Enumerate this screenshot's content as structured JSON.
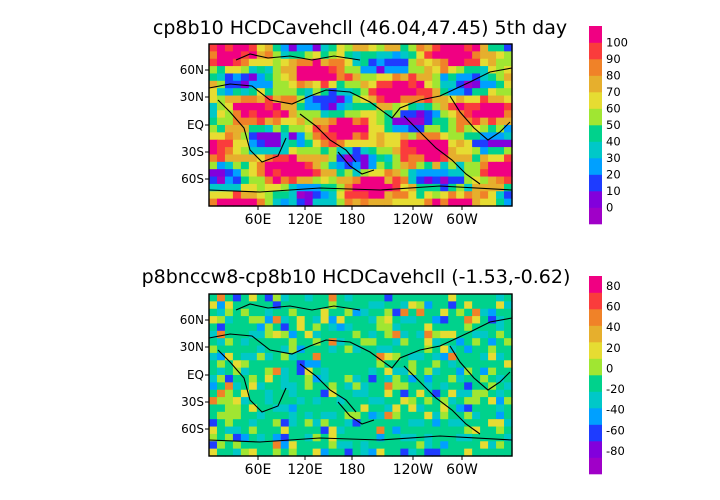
{
  "panels": [
    {
      "title": "cp8b10 HCDCavehcll (46.04,47.45) 5th day",
      "lat_labels": [
        "60N",
        "30N",
        "EQ",
        "30S",
        "60S"
      ],
      "lon_labels": [
        "60E",
        "120E",
        "180",
        "120W",
        "60W"
      ],
      "colorbar": {
        "colors": [
          "#a000c8",
          "#8200dc",
          "#1e3cff",
          "#00a0ff",
          "#00c8c8",
          "#00d28c",
          "#a0e632",
          "#e6dc32",
          "#e6af2d",
          "#f08228",
          "#fa3c3c",
          "#f00082"
        ],
        "labels": [
          "0",
          "10",
          "20",
          "30",
          "40",
          "50",
          "60",
          "70",
          "80",
          "90",
          "100"
        ]
      },
      "field_palette": [
        "#a000c8",
        "#8200dc",
        "#1e3cff",
        "#00a0ff",
        "#00c8c8",
        "#00d28c",
        "#a0e632",
        "#e6dc32",
        "#e6af2d",
        "#f08228",
        "#fa3c3c",
        "#f00082"
      ]
    },
    {
      "title": "p8bnccw8-cp8b10 HCDCavehcll (-1.53,-0.62)",
      "lat_labels": [
        "60N",
        "30N",
        "EQ",
        "30S",
        "60S"
      ],
      "lon_labels": [
        "60E",
        "120E",
        "180",
        "120W",
        "60W"
      ],
      "colorbar": {
        "colors": [
          "#a000c8",
          "#8200dc",
          "#1e3cff",
          "#00a0ff",
          "#00c8c8",
          "#00d28c",
          "#a0e632",
          "#e6dc32",
          "#e6af2d",
          "#f08228",
          "#fa3c3c",
          "#f00082"
        ],
        "labels": [
          "-80",
          "-60",
          "-40",
          "-20",
          "0",
          "20",
          "40",
          "60",
          "80"
        ]
      },
      "field_palette": [
        "#00d28c",
        "#00c8c8",
        "#a0e632",
        "#e6dc32",
        "#00a0ff",
        "#1e3cff",
        "#f08228"
      ]
    }
  ]
}
